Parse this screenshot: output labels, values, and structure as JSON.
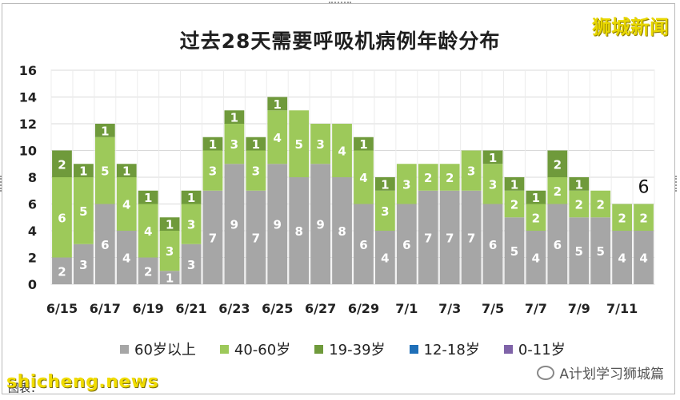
{
  "brand": "狮城新闻",
  "watermark": "shicheng.news",
  "source_label": "图表：",
  "wechat_account": "A计划学习狮城篇",
  "chart_data": {
    "type": "bar",
    "stacked": true,
    "title": "过去28天需要呼吸机病例年龄分布",
    "categories": [
      "6/15",
      "6/16",
      "6/17",
      "6/18",
      "6/19",
      "6/20",
      "6/21",
      "6/22",
      "6/23",
      "6/24",
      "6/25",
      "6/26",
      "6/27",
      "6/28",
      "6/29",
      "6/30",
      "7/1",
      "7/2",
      "7/3",
      "7/4",
      "7/5",
      "7/6",
      "7/7",
      "7/8",
      "7/9",
      "7/10",
      "7/11",
      "7/12"
    ],
    "x_tick_labels": [
      "6/15",
      "6/17",
      "6/19",
      "6/21",
      "6/23",
      "6/25",
      "6/27",
      "6/29",
      "7/1",
      "7/3",
      "7/5",
      "7/7",
      "7/9",
      "7/11"
    ],
    "series": [
      {
        "name": "60岁以上",
        "color": "#a6a6a6",
        "values": [
          2,
          3,
          6,
          4,
          2,
          1,
          3,
          7,
          9,
          7,
          9,
          8,
          9,
          8,
          6,
          4,
          6,
          7,
          7,
          7,
          6,
          5,
          4,
          6,
          5,
          5,
          4,
          4
        ]
      },
      {
        "name": "40-60岁",
        "color": "#9dc95a",
        "values": [
          6,
          5,
          5,
          4,
          4,
          3,
          3,
          3,
          3,
          3,
          4,
          5,
          3,
          4,
          4,
          3,
          3,
          2,
          2,
          3,
          3,
          2,
          2,
          2,
          2,
          2,
          2,
          2
        ]
      },
      {
        "name": "19-39岁",
        "color": "#6f9a3b",
        "values": [
          2,
          1,
          1,
          1,
          1,
          1,
          1,
          1,
          1,
          1,
          1,
          0,
          0,
          0,
          1,
          1,
          0,
          0,
          0,
          0,
          1,
          1,
          1,
          2,
          1,
          0,
          0,
          0
        ]
      },
      {
        "name": "12-18岁",
        "color": "#1f6fb8",
        "values": [
          0,
          0,
          0,
          0,
          0,
          0,
          0,
          0,
          0,
          0,
          0,
          0,
          0,
          0,
          0,
          0,
          0,
          0,
          0,
          0,
          0,
          0,
          0,
          0,
          0,
          0,
          0,
          0
        ]
      },
      {
        "name": "0-11岁",
        "color": "#7f63a8",
        "values": [
          0,
          0,
          0,
          0,
          0,
          0,
          0,
          0,
          0,
          0,
          0,
          0,
          0,
          0,
          0,
          0,
          0,
          0,
          0,
          0,
          0,
          0,
          0,
          0,
          0,
          0,
          0,
          0
        ]
      }
    ],
    "ylim": [
      0,
      16
    ],
    "yticks": [
      0,
      2,
      4,
      6,
      8,
      10,
      12,
      14,
      16
    ],
    "grid": true,
    "legend_position": "bottom",
    "annotations": [
      {
        "category": "7/12",
        "text": "6"
      }
    ]
  }
}
